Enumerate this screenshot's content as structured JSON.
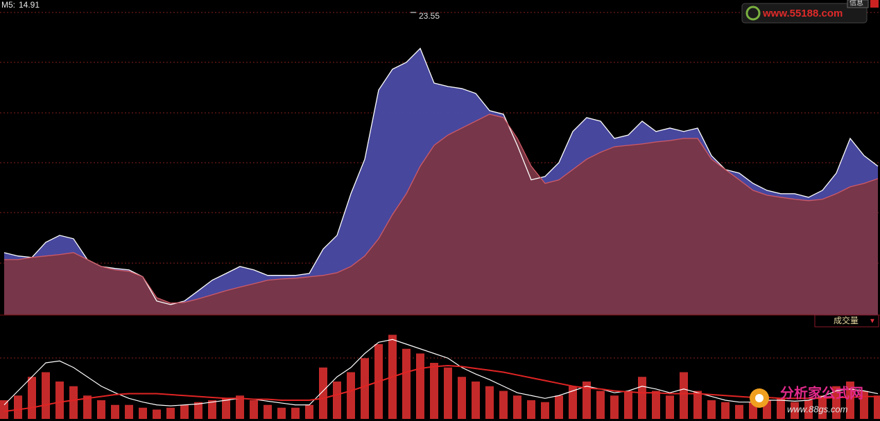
{
  "readout": {
    "label": "M5:",
    "value": 14.91
  },
  "watermark": {
    "top": "www.55188.com",
    "bottom_title": "分析家公式网",
    "bottom_url": "www.88gs.com",
    "button": "信息"
  },
  "chart_data": [
    {
      "type": "area",
      "ylim": [
        6.54,
        24.25
      ],
      "grid": true,
      "peak": {
        "value": 23.55
      },
      "series": [
        {
          "color": "#ffffff",
          "fill": "#4b4ba6",
          "values": [
            10.05,
            9.86,
            9.78,
            10.63,
            11.02,
            10.83,
            9.66,
            9.27,
            9.16,
            9.08,
            8.69,
            7.33,
            7.13,
            7.33,
            7.91,
            8.5,
            8.88,
            9.27,
            9.08,
            8.77,
            8.77,
            8.77,
            8.88,
            10.25,
            11.02,
            13.36,
            15.3,
            19.19,
            20.36,
            20.75,
            21.53,
            19.58,
            19.39,
            19.27,
            19.0,
            18.03,
            17.83,
            16.08,
            14.14,
            14.33,
            15.11,
            16.86,
            17.64,
            17.44,
            16.47,
            16.66,
            17.44,
            16.86,
            17.05,
            16.86,
            17.05,
            15.5,
            14.72,
            14.52,
            13.94,
            13.55,
            13.36,
            13.36,
            13.16,
            13.55,
            14.52,
            16.47,
            15.5,
            14.91
          ]
        },
        {
          "color": "#d05a66",
          "fill": "#7a3644",
          "values": [
            9.66,
            9.66,
            9.78,
            9.86,
            9.94,
            10.05,
            9.66,
            9.27,
            9.08,
            9.0,
            8.69,
            7.52,
            7.21,
            7.25,
            7.45,
            7.68,
            7.91,
            8.11,
            8.3,
            8.5,
            8.57,
            8.61,
            8.69,
            8.77,
            8.92,
            9.27,
            9.86,
            10.83,
            12.19,
            13.36,
            14.91,
            16.08,
            16.66,
            17.05,
            17.44,
            17.83,
            17.64,
            16.47,
            14.91,
            13.94,
            14.14,
            14.72,
            15.3,
            15.69,
            16.0,
            16.08,
            16.16,
            16.27,
            16.35,
            16.47,
            16.47,
            15.3,
            14.72,
            14.14,
            13.55,
            13.28,
            13.16,
            13.05,
            12.97,
            13.05,
            13.36,
            13.75,
            13.94,
            14.21
          ]
        }
      ]
    },
    {
      "type": "bar",
      "title": "成交量",
      "menu": "▼",
      "ylim": [
        0,
        100
      ],
      "color": "#c42a2a",
      "values": [
        20,
        25,
        45,
        50,
        40,
        35,
        25,
        20,
        15,
        15,
        12,
        10,
        12,
        15,
        18,
        20,
        22,
        25,
        20,
        15,
        12,
        12,
        15,
        55,
        40,
        50,
        65,
        80,
        90,
        75,
        70,
        60,
        55,
        45,
        40,
        35,
        30,
        25,
        20,
        18,
        25,
        35,
        40,
        30,
        25,
        30,
        45,
        30,
        25,
        50,
        30,
        20,
        18,
        15,
        18,
        20,
        22,
        18,
        20,
        25,
        35,
        40,
        30,
        25
      ],
      "series": [
        {
          "color": "#ffffff",
          "values": [
            15,
            30,
            45,
            60,
            62,
            55,
            45,
            35,
            28,
            22,
            18,
            15,
            14,
            15,
            16,
            18,
            20,
            22,
            21,
            19,
            17,
            15,
            15,
            30,
            45,
            55,
            70,
            82,
            85,
            80,
            75,
            70,
            65,
            55,
            48,
            42,
            35,
            28,
            25,
            22,
            25,
            30,
            35,
            32,
            28,
            30,
            35,
            32,
            28,
            32,
            28,
            24,
            20,
            18,
            18,
            20,
            20,
            19,
            20,
            24,
            30,
            32,
            30,
            27
          ]
        },
        {
          "color": "#e02424",
          "values": [
            8,
            10,
            12,
            15,
            18,
            20,
            22,
            24,
            26,
            27,
            27,
            27,
            26,
            25,
            24,
            23,
            22,
            22,
            21,
            21,
            20,
            20,
            20,
            22,
            26,
            30,
            35,
            40,
            45,
            50,
            54,
            56,
            57,
            56,
            54,
            52,
            50,
            47,
            44,
            41,
            38,
            35,
            33,
            32,
            30,
            29,
            28,
            28,
            27,
            27,
            27,
            26,
            25,
            24,
            23,
            23,
            22,
            22,
            22,
            22,
            23,
            23,
            24,
            24
          ]
        }
      ]
    }
  ]
}
